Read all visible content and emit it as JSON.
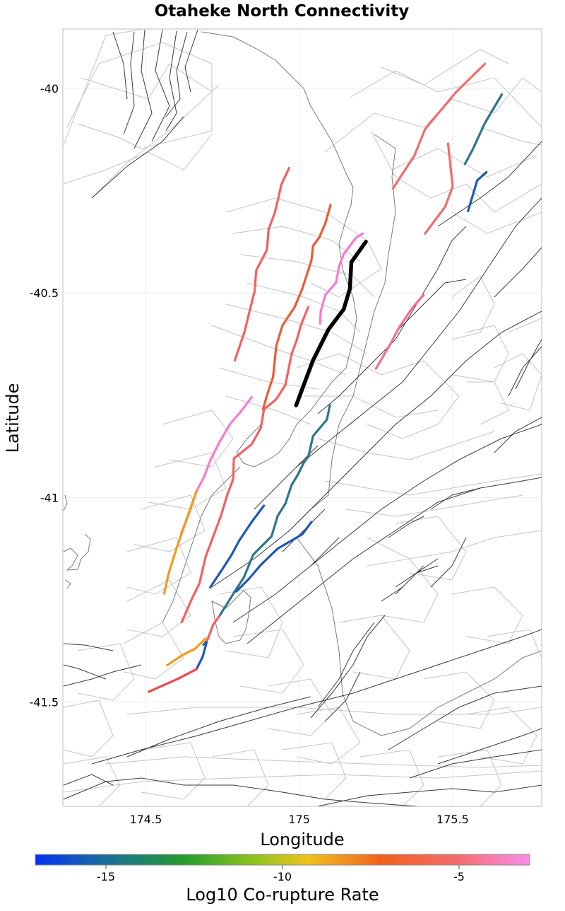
{
  "title": "Otaheke North Connectivity",
  "x_axis": {
    "label": "Longitude",
    "ticks": [
      {
        "value": 174.5,
        "label": "174.5"
      },
      {
        "value": 175.0,
        "label": "175"
      },
      {
        "value": 175.5,
        "label": "175.5"
      }
    ]
  },
  "y_axis": {
    "label": "Latitude",
    "ticks": [
      {
        "value": -40.0,
        "label": "-40"
      },
      {
        "value": -40.5,
        "label": "-40.5"
      },
      {
        "value": -41.0,
        "label": "-41"
      },
      {
        "value": -41.5,
        "label": "-41.5"
      }
    ]
  },
  "colorbar": {
    "label": "Log10 Co-rupture Rate",
    "range": [
      -17,
      -3
    ],
    "ticks": [
      {
        "value": -15,
        "label": "-15"
      },
      {
        "value": -10,
        "label": "-10"
      },
      {
        "value": -5,
        "label": "-5"
      }
    ],
    "colors": [
      "#0532f5",
      "#1a6f9a",
      "#249c2c",
      "#8cc41f",
      "#f0c21c",
      "#f2611c",
      "#f46b6b",
      "#f98ee8"
    ]
  },
  "chart_data": {
    "type": "map",
    "title": "Otaheke North Connectivity",
    "xlabel": "Longitude",
    "ylabel": "Latitude",
    "xlim": [
      174.23,
      175.79
    ],
    "ylim": [
      -41.755,
      -39.855
    ],
    "source_fault": {
      "name": "Otaheke North",
      "points": [
        [
          175.217,
          -40.375
        ],
        [
          175.17,
          -40.425
        ],
        [
          175.165,
          -40.49
        ],
        [
          175.145,
          -40.54
        ],
        [
          175.095,
          -40.59
        ],
        [
          175.045,
          -40.665
        ],
        [
          174.99,
          -40.775
        ]
      ]
    },
    "faults": [
      {
        "color": "#f46b6b",
        "points": [
          [
            175.605,
            -39.94
          ],
          [
            175.51,
            -40.01
          ],
          [
            175.41,
            -40.1
          ],
          [
            175.375,
            -40.165
          ],
          [
            175.305,
            -40.245
          ]
        ]
      },
      {
        "color": "#f46b6b",
        "points": [
          [
            175.485,
            -40.135
          ],
          [
            175.5,
            -40.24
          ],
          [
            175.475,
            -40.29
          ],
          [
            175.41,
            -40.355
          ]
        ]
      },
      {
        "color": "#2a7590",
        "points": [
          [
            175.66,
            -40.015
          ],
          [
            175.605,
            -40.085
          ],
          [
            175.565,
            -40.15
          ],
          [
            175.54,
            -40.185
          ]
        ]
      },
      {
        "color": "#1f58b8",
        "points": [
          [
            175.61,
            -40.205
          ],
          [
            175.58,
            -40.225
          ],
          [
            175.55,
            -40.3
          ]
        ]
      },
      {
        "color": "#f46060",
        "points": [
          [
            174.967,
            -40.195
          ],
          [
            174.942,
            -40.235
          ],
          [
            174.93,
            -40.275
          ],
          [
            174.92,
            -40.305
          ],
          [
            174.9,
            -40.345
          ],
          [
            174.895,
            -40.395
          ],
          [
            174.86,
            -40.445
          ],
          [
            174.855,
            -40.495
          ],
          [
            174.835,
            -40.555
          ],
          [
            174.822,
            -40.595
          ],
          [
            174.79,
            -40.665
          ]
        ]
      },
      {
        "color": "#ee5a34",
        "points": [
          [
            175.102,
            -40.285
          ],
          [
            175.085,
            -40.33
          ],
          [
            175.065,
            -40.365
          ],
          [
            175.045,
            -40.385
          ],
          [
            175.04,
            -40.42
          ],
          [
            175.01,
            -40.49
          ],
          [
            174.985,
            -40.535
          ],
          [
            174.945,
            -40.58
          ],
          [
            174.925,
            -40.63
          ],
          [
            174.915,
            -40.705
          ],
          [
            174.895,
            -40.75
          ],
          [
            174.882,
            -40.785
          ]
        ]
      },
      {
        "color": "#f67ad6",
        "points": [
          [
            175.207,
            -40.355
          ],
          [
            175.185,
            -40.365
          ],
          [
            175.145,
            -40.405
          ],
          [
            175.13,
            -40.435
          ],
          [
            175.12,
            -40.475
          ],
          [
            175.085,
            -40.505
          ],
          [
            175.07,
            -40.545
          ],
          [
            175.068,
            -40.575
          ]
        ]
      },
      {
        "color": "#f86c8c",
        "points": [
          [
            175.405,
            -40.505
          ],
          [
            175.37,
            -40.535
          ],
          [
            175.325,
            -40.585
          ],
          [
            175.297,
            -40.625
          ],
          [
            175.25,
            -40.685
          ]
        ]
      },
      {
        "color": "#f46060",
        "points": [
          [
            175.029,
            -40.535
          ],
          [
            175.005,
            -40.58
          ],
          [
            174.992,
            -40.615
          ],
          [
            174.975,
            -40.65
          ],
          [
            174.955,
            -40.725
          ],
          [
            174.925,
            -40.76
          ],
          [
            174.885,
            -40.785
          ],
          [
            174.875,
            -40.83
          ],
          [
            174.845,
            -40.87
          ],
          [
            174.787,
            -40.905
          ],
          [
            174.785,
            -40.955
          ],
          [
            174.765,
            -40.995
          ],
          [
            174.745,
            -41.045
          ],
          [
            174.725,
            -41.085
          ],
          [
            174.695,
            -41.145
          ],
          [
            174.675,
            -41.21
          ],
          [
            174.652,
            -41.245
          ],
          [
            174.617,
            -41.305
          ]
        ]
      },
      {
        "color": "#f67ad6",
        "points": [
          [
            174.845,
            -40.755
          ],
          [
            174.81,
            -40.79
          ],
          [
            174.775,
            -40.82
          ],
          [
            174.74,
            -40.865
          ],
          [
            174.71,
            -40.91
          ],
          [
            174.69,
            -40.95
          ],
          [
            174.665,
            -40.985
          ]
        ]
      },
      {
        "color": "#ee5a34",
        "points": [
          [
            174.665,
            -40.985
          ],
          [
            174.64,
            -41.04
          ],
          [
            174.615,
            -41.09
          ]
        ]
      },
      {
        "color": "#f59a1c",
        "points": [
          [
            174.665,
            -40.985
          ],
          [
            174.63,
            -41.06
          ],
          [
            174.6,
            -41.125
          ],
          [
            174.575,
            -41.185
          ],
          [
            174.56,
            -41.235
          ]
        ]
      },
      {
        "color": "#2a7590",
        "points": [
          [
            175.1,
            -40.775
          ],
          [
            175.09,
            -40.81
          ],
          [
            175.045,
            -40.85
          ],
          [
            175.03,
            -40.9
          ],
          [
            175.015,
            -40.915
          ],
          [
            174.995,
            -40.945
          ],
          [
            174.975,
            -40.97
          ],
          [
            174.955,
            -41.015
          ],
          [
            174.93,
            -41.045
          ],
          [
            174.91,
            -41.095
          ],
          [
            174.85,
            -41.14
          ],
          [
            174.82,
            -41.195
          ],
          [
            174.79,
            -41.23
          ],
          [
            174.74,
            -41.29
          ]
        ]
      },
      {
        "color": "#2a7590",
        "points": [
          [
            174.7,
            -41.35
          ],
          [
            174.688,
            -41.36
          ]
        ]
      },
      {
        "color": "#1f58b8",
        "points": [
          [
            174.885,
            -41.02
          ],
          [
            174.845,
            -41.06
          ],
          [
            174.805,
            -41.105
          ],
          [
            174.78,
            -41.14
          ],
          [
            174.75,
            -41.175
          ],
          [
            174.71,
            -41.22
          ]
        ]
      },
      {
        "color": "#1f58b8",
        "points": [
          [
            175.04,
            -41.06
          ],
          [
            175.01,
            -41.09
          ],
          [
            174.93,
            -41.125
          ],
          [
            174.875,
            -41.165
          ],
          [
            174.835,
            -41.2
          ],
          [
            174.795,
            -41.23
          ]
        ]
      },
      {
        "color": "#1f58b8",
        "points": [
          [
            174.7,
            -41.35
          ],
          [
            174.685,
            -41.39
          ],
          [
            174.665,
            -41.42
          ]
        ]
      },
      {
        "color": "#f46060",
        "points": [
          [
            174.74,
            -41.29
          ],
          [
            174.72,
            -41.31
          ],
          [
            174.7,
            -41.35
          ]
        ]
      },
      {
        "color": "#f59a1c",
        "points": [
          [
            174.695,
            -41.345
          ],
          [
            174.66,
            -41.37
          ],
          [
            174.62,
            -41.385
          ],
          [
            174.57,
            -41.41
          ]
        ]
      },
      {
        "color": "#ee4a4a",
        "points": [
          [
            174.665,
            -41.42
          ],
          [
            174.6,
            -41.445
          ],
          [
            174.51,
            -41.475
          ]
        ]
      }
    ]
  }
}
